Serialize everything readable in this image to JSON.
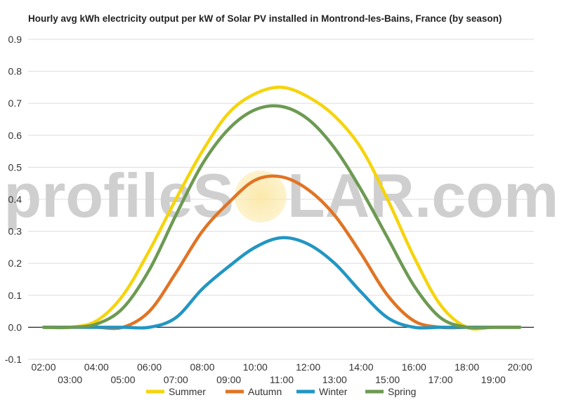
{
  "chart_data": {
    "type": "line",
    "title": "Hourly avg kWh electricity output per kW of Solar PV installed in Montrond-les-Bains, France (by season)",
    "xlabel": "",
    "ylabel": "",
    "ylim": [
      -0.1,
      0.9
    ],
    "yticks": [
      "-0.1",
      "0.0",
      "0.1",
      "0.2",
      "0.3",
      "0.4",
      "0.5",
      "0.6",
      "0.7",
      "0.8",
      "0.9"
    ],
    "x": [
      "02:00",
      "03:00",
      "04:00",
      "05:00",
      "06:00",
      "07:00",
      "08:00",
      "09:00",
      "10:00",
      "11:00",
      "12:00",
      "13:00",
      "14:00",
      "15:00",
      "16:00",
      "17:00",
      "18:00",
      "19:00",
      "20:00"
    ],
    "grid": true,
    "legend_position": "bottom",
    "series": [
      {
        "name": "Summer",
        "color": "#f5d40c",
        "values": [
          0.0,
          0.0,
          0.02,
          0.1,
          0.24,
          0.4,
          0.55,
          0.67,
          0.73,
          0.75,
          0.72,
          0.66,
          0.56,
          0.4,
          0.22,
          0.07,
          0.0,
          0.0,
          0.0
        ]
      },
      {
        "name": "Autumn",
        "color": "#e07424",
        "values": [
          0.0,
          0.0,
          0.0,
          0.0,
          0.05,
          0.17,
          0.3,
          0.39,
          0.46,
          0.47,
          0.43,
          0.35,
          0.23,
          0.1,
          0.02,
          0.0,
          0.0,
          0.0,
          0.0
        ]
      },
      {
        "name": "Winter",
        "color": "#2296c3",
        "values": [
          0.0,
          0.0,
          0.0,
          0.0,
          0.0,
          0.03,
          0.12,
          0.19,
          0.25,
          0.28,
          0.26,
          0.2,
          0.11,
          0.03,
          0.0,
          0.0,
          0.0,
          0.0,
          0.0
        ]
      },
      {
        "name": "Spring",
        "color": "#6d9a52",
        "values": [
          0.0,
          0.0,
          0.01,
          0.06,
          0.18,
          0.35,
          0.51,
          0.62,
          0.68,
          0.69,
          0.65,
          0.56,
          0.43,
          0.28,
          0.13,
          0.03,
          0.0,
          0.0,
          0.0
        ]
      }
    ]
  },
  "watermark": {
    "left_text": "profileS",
    "right_text": "LAR.com",
    "sun_color": "#f9e79f"
  }
}
